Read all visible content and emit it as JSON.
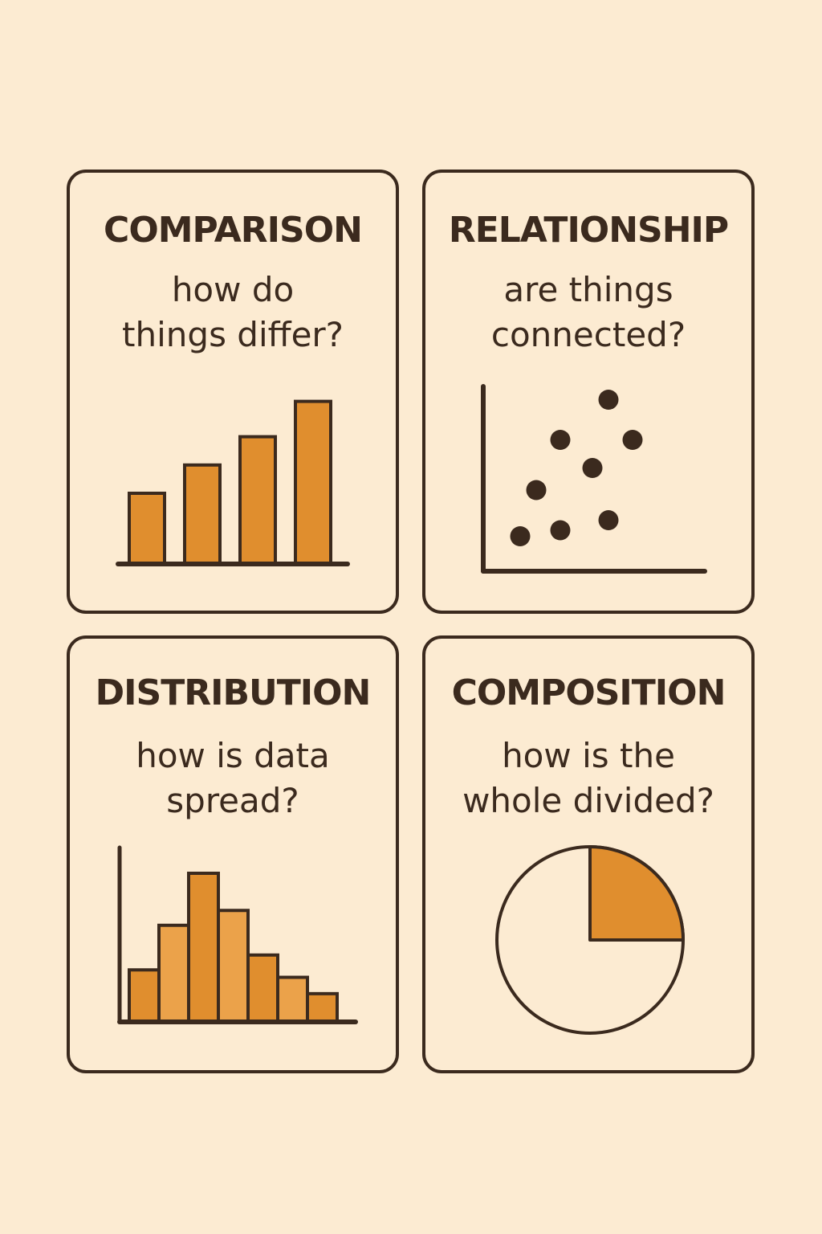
{
  "cards": [
    {
      "title": "COMPARISON",
      "question_lines": [
        "how do",
        "things differ?"
      ],
      "icon": "bar-chart-icon"
    },
    {
      "title": "RELATIONSHIP",
      "question_lines": [
        "are things",
        "connected?"
      ],
      "icon": "scatter-plot-icon"
    },
    {
      "title": "DISTRIBUTION",
      "question_lines": [
        "how is data",
        "spread?"
      ],
      "icon": "histogram-icon"
    },
    {
      "title": "COMPOSITION",
      "question_lines": [
        "how is the",
        "whole divided?"
      ],
      "icon": "pie-chart-icon"
    }
  ],
  "colors": {
    "background": "#fcebd2",
    "ink": "#3b2a1e",
    "accent": "#e08e2e",
    "accent_light": "#eba24a"
  },
  "chart_data": [
    {
      "type": "bar",
      "values": [
        5,
        7,
        9,
        11.5
      ]
    },
    {
      "type": "scatter",
      "points": [
        {
          "x": 1,
          "y": 1.5
        },
        {
          "x": 2,
          "y": 3.8
        },
        {
          "x": 3.5,
          "y": 1.8
        },
        {
          "x": 3.5,
          "y": 6.3
        },
        {
          "x": 5.5,
          "y": 4.9
        },
        {
          "x": 6.5,
          "y": 2.3
        },
        {
          "x": 6.5,
          "y": 8.3
        },
        {
          "x": 8,
          "y": 6.3
        }
      ]
    },
    {
      "type": "bar",
      "values": [
        3.5,
        6.5,
        10,
        7.5,
        4.5,
        3,
        1.9
      ]
    },
    {
      "type": "pie",
      "slices": [
        25,
        75
      ]
    }
  ]
}
